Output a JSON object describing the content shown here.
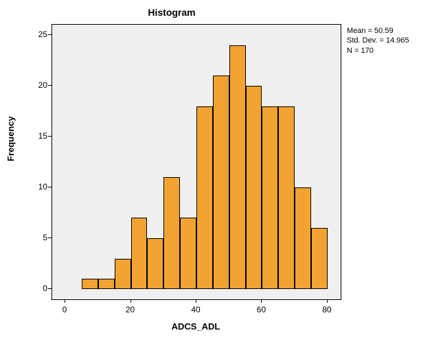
{
  "chart": {
    "type": "histogram",
    "title": "Histogram",
    "xlabel": "ADCS_ADL",
    "ylabel": "Frequency",
    "title_fontsize": 14,
    "label_fontsize": 13,
    "tick_fontsize": 12,
    "background_color": "#ffffff",
    "plot_background": "#f0f0f0",
    "bar_color": "#f2a332",
    "bar_border_color": "#000000",
    "border_color": "#000000",
    "xlim": [
      -4,
      84
    ],
    "ylim": [
      -1,
      26
    ],
    "xticks": [
      0,
      20,
      40,
      60,
      80
    ],
    "yticks": [
      0,
      5,
      10,
      15,
      20,
      25
    ],
    "bin_width": 5,
    "bins": [
      {
        "start": 5,
        "end": 10,
        "freq": 1
      },
      {
        "start": 10,
        "end": 15,
        "freq": 1
      },
      {
        "start": 15,
        "end": 20,
        "freq": 3
      },
      {
        "start": 20,
        "end": 25,
        "freq": 7
      },
      {
        "start": 25,
        "end": 30,
        "freq": 5
      },
      {
        "start": 30,
        "end": 35,
        "freq": 11
      },
      {
        "start": 35,
        "end": 40,
        "freq": 7
      },
      {
        "start": 40,
        "end": 45,
        "freq": 18
      },
      {
        "start": 45,
        "end": 50,
        "freq": 21
      },
      {
        "start": 50,
        "end": 55,
        "freq": 24
      },
      {
        "start": 55,
        "end": 60,
        "freq": 20
      },
      {
        "start": 60,
        "end": 65,
        "freq": 18
      },
      {
        "start": 65,
        "end": 70,
        "freq": 18
      },
      {
        "start": 70,
        "end": 75,
        "freq": 10
      },
      {
        "start": 75,
        "end": 80,
        "freq": 6
      }
    ],
    "stats": {
      "mean_label": "Mean = 50.59",
      "sd_label": "Std. Dev. = 14.965",
      "n_label": "N = 170"
    }
  }
}
